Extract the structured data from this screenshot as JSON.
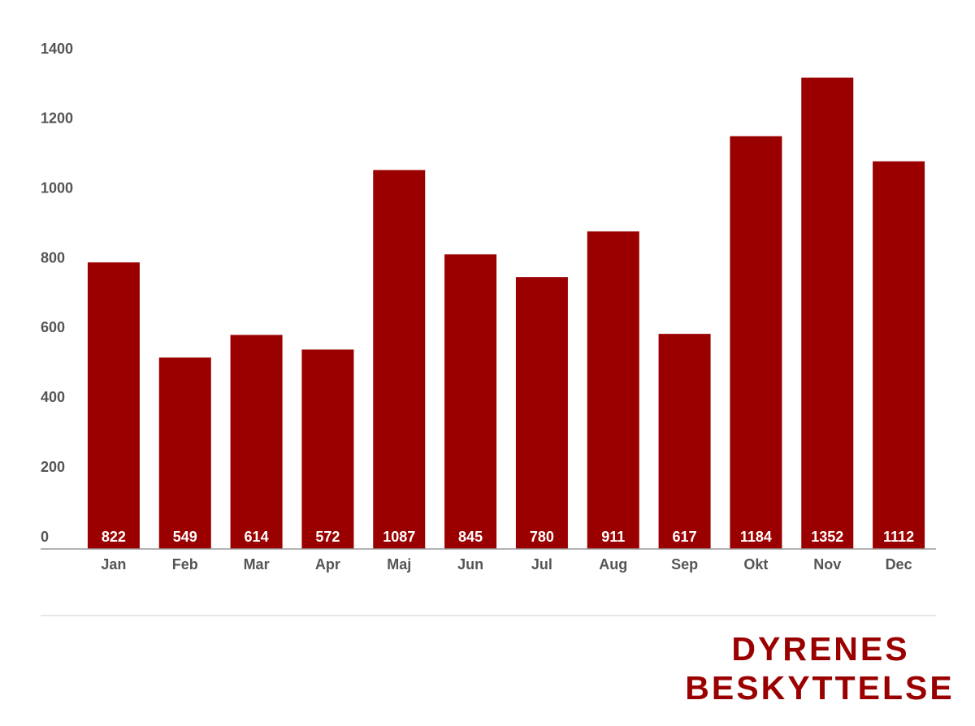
{
  "chart_data": {
    "type": "bar",
    "categories": [
      "Jan",
      "Feb",
      "Mar",
      "Apr",
      "Maj",
      "Jun",
      "Jul",
      "Aug",
      "Sep",
      "Okt",
      "Nov",
      "Dec"
    ],
    "values": [
      822,
      549,
      614,
      572,
      1087,
      845,
      780,
      911,
      617,
      1184,
      1352,
      1112
    ],
    "color": "#9b0000",
    "ylim": [
      0,
      1400
    ],
    "yticks": [
      0,
      200,
      400,
      600,
      800,
      1000,
      1200,
      1400
    ],
    "grid": false
  },
  "logo": {
    "lines": [
      "DYRENES",
      "BESKYTTELSE"
    ]
  }
}
